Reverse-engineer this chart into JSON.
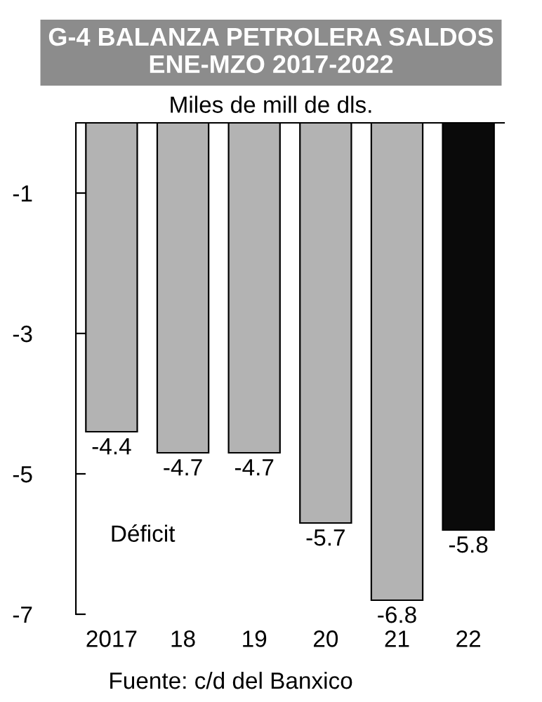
{
  "chart_data": {
    "type": "bar",
    "title": "G-4 BALANZA PETROLERA SALDOS ENE-MZO 2017-2022",
    "subtitle": "Miles de mill de dls.",
    "categories": [
      "2017",
      "18",
      "19",
      "20",
      "21",
      "22"
    ],
    "values": [
      -4.4,
      -4.7,
      -4.7,
      -5.7,
      -6.8,
      -5.8
    ],
    "colors": [
      "#b3b3b3",
      "#b3b3b3",
      "#b3b3b3",
      "#b3b3b3",
      "#b3b3b3",
      "#0a0a0a"
    ],
    "ylim": [
      -7,
      0
    ],
    "yticks": [
      -1,
      -3,
      -5,
      -7
    ],
    "grid": false,
    "data_labels": true,
    "annotations": [
      "Déficit",
      "Fuente: c/d del Banxico"
    ]
  }
}
